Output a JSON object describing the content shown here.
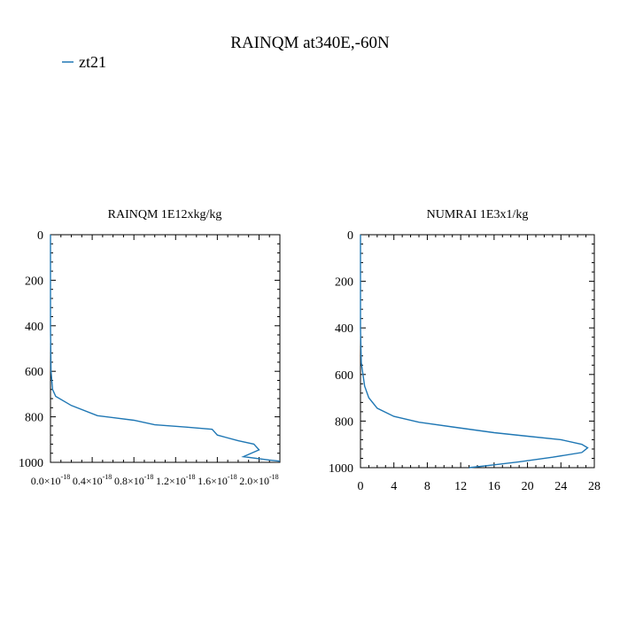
{
  "figure": {
    "title": "RAINQM at340E,-60N",
    "legend": [
      {
        "label": "zt21",
        "color": "#1f77b4"
      }
    ]
  },
  "chart_data": [
    {
      "type": "line",
      "title": "RAINQM  1E12xkg/kg",
      "xlim": [
        0,
        2.2e-18
      ],
      "ylim": [
        1000,
        0
      ],
      "y_inverted": true,
      "grid": false,
      "xticks": [
        0.0,
        4e-19,
        8e-19,
        1.2e-18,
        1.6e-18,
        2e-18
      ],
      "xtick_labels": [
        {
          "base": "0.0×10",
          "exp": "-18"
        },
        {
          "base": "0.4×10",
          "exp": "-18"
        },
        {
          "base": "0.8×10",
          "exp": "-18"
        },
        {
          "base": "1.2×10",
          "exp": "-18"
        },
        {
          "base": "1.6×10",
          "exp": "-18"
        },
        {
          "base": "2.0×10",
          "exp": "-18"
        }
      ],
      "yticks": [
        0,
        200,
        400,
        600,
        800,
        1000
      ],
      "ytick_labels": [
        "0",
        "200",
        "400",
        "600",
        "800",
        "1000"
      ],
      "series": [
        {
          "name": "zt21",
          "color": "#1f77b4",
          "points": [
            [
              0,
              0
            ],
            [
              0,
              400
            ],
            [
              5e-21,
              600
            ],
            [
              2e-20,
              680
            ],
            [
              5e-20,
              710
            ],
            [
              2e-19,
              750
            ],
            [
              4.5e-19,
              795
            ],
            [
              8e-19,
              815
            ],
            [
              1e-18,
              835
            ],
            [
              1.3e-18,
              845
            ],
            [
              1.55e-18,
              855
            ],
            [
              1.6e-18,
              880
            ],
            [
              1.8e-18,
              905
            ],
            [
              1.95e-18,
              920
            ],
            [
              2e-18,
              945
            ],
            [
              1.85e-18,
              975
            ],
            [
              2.1e-18,
              990
            ],
            [
              2.2e-18,
              995
            ]
          ]
        }
      ]
    },
    {
      "type": "line",
      "title": "NUMRAI  1E3x1/kg",
      "xlim": [
        0,
        28
      ],
      "ylim": [
        1000,
        0
      ],
      "y_inverted": true,
      "grid": false,
      "xticks": [
        0,
        4,
        8,
        12,
        16,
        20,
        24,
        28
      ],
      "xtick_labels": [
        "0",
        "4",
        "8",
        "12",
        "16",
        "20",
        "24",
        "28"
      ],
      "yticks": [
        0,
        200,
        400,
        600,
        800,
        1000
      ],
      "ytick_labels": [
        "0",
        "200",
        "400",
        "600",
        "800",
        "1000"
      ],
      "series": [
        {
          "name": "zt21",
          "color": "#1f77b4",
          "points": [
            [
              0,
              0
            ],
            [
              0,
              400
            ],
            [
              0.1,
              550
            ],
            [
              0.5,
              650
            ],
            [
              1,
              700
            ],
            [
              2,
              745
            ],
            [
              4,
              780
            ],
            [
              7,
              805
            ],
            [
              11,
              825
            ],
            [
              16,
              850
            ],
            [
              20,
              865
            ],
            [
              24,
              880
            ],
            [
              26.5,
              900
            ],
            [
              27.2,
              915
            ],
            [
              26.5,
              935
            ],
            [
              23,
              955
            ],
            [
              19,
              975
            ],
            [
              16,
              988
            ],
            [
              13,
              1000
            ]
          ]
        }
      ]
    }
  ]
}
